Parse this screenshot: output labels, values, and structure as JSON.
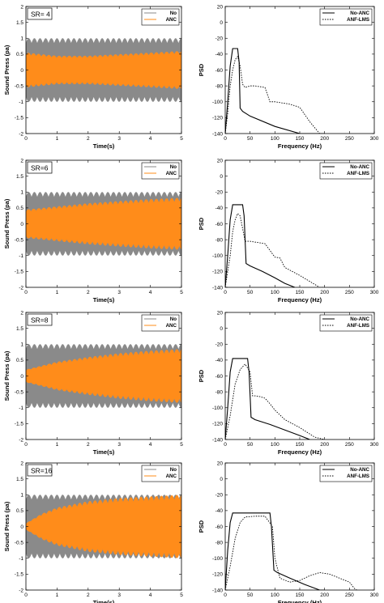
{
  "figure": {
    "colors": {
      "no": "#8a8a8a",
      "anc": "#ff8c1a",
      "axis": "#000000",
      "bg": "#ffffff"
    },
    "time_axis": {
      "xlabel": "Time(s)",
      "ylabel": "Sound Press (pa)",
      "xticks": [
        "0",
        "1",
        "2",
        "3",
        "4",
        "5"
      ],
      "yticks": [
        "-2",
        "-1.5",
        "-1",
        "-0.5",
        "0",
        "0.5",
        "1",
        "1.5",
        "2"
      ],
      "xlim": [
        0,
        5
      ],
      "ylim": [
        -2,
        2
      ],
      "legend": [
        "No",
        "ANC"
      ],
      "legend_position": "top-right"
    },
    "psd_axis": {
      "xlabel": "Frequency (Hz)",
      "ylabel": "PSD",
      "xticks": [
        "0",
        "50",
        "100",
        "150",
        "200",
        "250",
        "300"
      ],
      "yticks": [
        "-140",
        "-120",
        "-100",
        "-80",
        "-60",
        "-40",
        "-20",
        "0",
        "20"
      ],
      "xlim": [
        0,
        300
      ],
      "ylim": [
        -140,
        20
      ],
      "legend": [
        "No-ANC",
        "ANF-LMS"
      ],
      "legend_position": "top-right"
    },
    "rows": [
      {
        "sr_label": "SR= 4"
      },
      {
        "sr_label": "SR=6"
      },
      {
        "sr_label": "SR=8"
      },
      {
        "sr_label": "SR=16"
      }
    ]
  },
  "chart_data": [
    {
      "type": "line",
      "row": 1,
      "panel": "time",
      "xlabel": "Time(s)",
      "ylabel": "Sound Press (pa)",
      "xlim": [
        0,
        5
      ],
      "ylim": [
        -2,
        2
      ],
      "grid": false,
      "legend_position": "top-right",
      "annotation": "SR= 4",
      "series": [
        {
          "name": "No",
          "envelope": {
            "x": [
              0,
              5
            ],
            "amplitude": [
              1.0,
              1.0
            ]
          }
        },
        {
          "name": "ANC",
          "envelope": {
            "x": [
              0,
              1,
              2,
              3,
              4,
              5
            ],
            "amplitude": [
              0.55,
              0.45,
              0.45,
              0.5,
              0.55,
              0.6
            ]
          }
        }
      ]
    },
    {
      "type": "line",
      "row": 1,
      "panel": "psd",
      "xlabel": "Frequency (Hz)",
      "ylabel": "PSD",
      "xlim": [
        0,
        300
      ],
      "ylim": [
        -140,
        20
      ],
      "grid": false,
      "legend_position": "top-right",
      "series": [
        {
          "name": "No-ANC",
          "x": [
            0,
            5,
            10,
            15,
            25,
            28,
            30,
            35,
            50,
            100,
            150,
            200
          ],
          "y": [
            -140,
            -100,
            -55,
            -33,
            -33,
            -50,
            -108,
            -112,
            -118,
            -131,
            -140,
            -140
          ]
        },
        {
          "name": "ANF-LMS",
          "x": [
            0,
            5,
            10,
            15,
            20,
            25,
            30,
            35,
            40,
            50,
            60,
            80,
            90,
            100,
            110,
            130,
            150,
            170,
            190
          ],
          "y": [
            -140,
            -115,
            -80,
            -60,
            -47,
            -43,
            -55,
            -78,
            -82,
            -80,
            -80,
            -82,
            -100,
            -100,
            -101,
            -103,
            -107,
            -125,
            -140
          ]
        }
      ]
    },
    {
      "type": "line",
      "row": 2,
      "panel": "time",
      "xlabel": "Time(s)",
      "ylabel": "Sound Press (pa)",
      "xlim": [
        0,
        5
      ],
      "ylim": [
        -2,
        2
      ],
      "grid": false,
      "legend_position": "top-right",
      "annotation": "SR=6",
      "series": [
        {
          "name": "No",
          "envelope": {
            "x": [
              0,
              5
            ],
            "amplitude": [
              1.0,
              1.0
            ]
          }
        },
        {
          "name": "ANC",
          "envelope": {
            "x": [
              0,
              1,
              2,
              3,
              4,
              5
            ],
            "amplitude": [
              0.45,
              0.55,
              0.65,
              0.72,
              0.78,
              0.82
            ]
          }
        }
      ]
    },
    {
      "type": "line",
      "row": 2,
      "panel": "psd",
      "xlabel": "Frequency (Hz)",
      "ylabel": "PSD",
      "xlim": [
        0,
        300
      ],
      "ylim": [
        -140,
        20
      ],
      "grid": false,
      "legend_position": "top-right",
      "series": [
        {
          "name": "No-ANC",
          "x": [
            0,
            5,
            10,
            15,
            35,
            38,
            42,
            50,
            75,
            100,
            120,
            140
          ],
          "y": [
            -140,
            -100,
            -55,
            -36,
            -36,
            -50,
            -110,
            -113,
            -120,
            -128,
            -135,
            -140
          ]
        },
        {
          "name": "ANF-LMS",
          "x": [
            0,
            10,
            15,
            20,
            25,
            30,
            40,
            50,
            70,
            80,
            100,
            110,
            120,
            150,
            190,
            200
          ],
          "y": [
            -140,
            -100,
            -70,
            -55,
            -47,
            -50,
            -82,
            -82,
            -84,
            -85,
            -102,
            -103,
            -115,
            -125,
            -140,
            -140
          ]
        }
      ]
    },
    {
      "type": "line",
      "row": 3,
      "panel": "time",
      "xlabel": "Time(s)",
      "ylabel": "Sound Press (pa)",
      "xlim": [
        0,
        5
      ],
      "ylim": [
        -2,
        2
      ],
      "grid": false,
      "legend_position": "top-right",
      "annotation": "SR=8",
      "series": [
        {
          "name": "No",
          "envelope": {
            "x": [
              0,
              5
            ],
            "amplitude": [
              1.0,
              1.0
            ]
          }
        },
        {
          "name": "ANC",
          "envelope": {
            "x": [
              0,
              1,
              2,
              3,
              4,
              5
            ],
            "amplitude": [
              0.2,
              0.45,
              0.6,
              0.72,
              0.8,
              0.85
            ]
          }
        }
      ]
    },
    {
      "type": "line",
      "row": 3,
      "panel": "psd",
      "xlabel": "Frequency (Hz)",
      "ylabel": "PSD",
      "xlim": [
        0,
        300
      ],
      "ylim": [
        -140,
        20
      ],
      "grid": false,
      "legend_position": "top-right",
      "series": [
        {
          "name": "No-ANC",
          "x": [
            0,
            5,
            10,
            15,
            45,
            48,
            52,
            60,
            90,
            120,
            150,
            170
          ],
          "y": [
            -140,
            -100,
            -55,
            -38,
            -38,
            -55,
            -112,
            -115,
            -121,
            -128,
            -135,
            -140
          ]
        },
        {
          "name": "ANF-LMS",
          "x": [
            0,
            10,
            20,
            30,
            40,
            50,
            55,
            60,
            70,
            80,
            90,
            100,
            120,
            150,
            180,
            200
          ],
          "y": [
            -140,
            -110,
            -70,
            -52,
            -45,
            -55,
            -85,
            -85,
            -86,
            -88,
            -95,
            -103,
            -115,
            -125,
            -137,
            -140
          ]
        }
      ]
    },
    {
      "type": "line",
      "row": 4,
      "panel": "time",
      "xlabel": "Time(s)",
      "ylabel": "Sound Press (pa)",
      "xlim": [
        0,
        5
      ],
      "ylim": [
        -2,
        2
      ],
      "grid": false,
      "legend_position": "top-right",
      "annotation": "SR=16",
      "series": [
        {
          "name": "No",
          "envelope": {
            "x": [
              0,
              5
            ],
            "amplitude": [
              1.0,
              1.0
            ]
          }
        },
        {
          "name": "ANC",
          "envelope": {
            "x": [
              0,
              0.5,
              1,
              2,
              3,
              4,
              5
            ],
            "amplitude": [
              0.1,
              0.4,
              0.6,
              0.8,
              0.9,
              0.95,
              1.0
            ]
          }
        }
      ]
    },
    {
      "type": "line",
      "row": 4,
      "panel": "psd",
      "xlabel": "Frequency (Hz)",
      "ylabel": "PSD",
      "xlim": [
        0,
        300
      ],
      "ylim": [
        -140,
        20
      ],
      "grid": false,
      "legend_position": "top-right",
      "series": [
        {
          "name": "No-ANC",
          "x": [
            0,
            5,
            10,
            15,
            90,
            93,
            98,
            105,
            130,
            160,
            190,
            200
          ],
          "y": [
            -140,
            -90,
            -55,
            -43,
            -43,
            -60,
            -115,
            -118,
            -125,
            -133,
            -140,
            -140
          ]
        },
        {
          "name": "ANF-LMS",
          "x": [
            0,
            10,
            20,
            30,
            40,
            60,
            80,
            95,
            100,
            110,
            130,
            150,
            170,
            190,
            210,
            230,
            250,
            260,
            265
          ],
          "y": [
            -140,
            -110,
            -75,
            -55,
            -48,
            -47,
            -47,
            -60,
            -100,
            -125,
            -130,
            -128,
            -122,
            -118,
            -120,
            -125,
            -130,
            -138,
            -140
          ]
        }
      ]
    }
  ]
}
